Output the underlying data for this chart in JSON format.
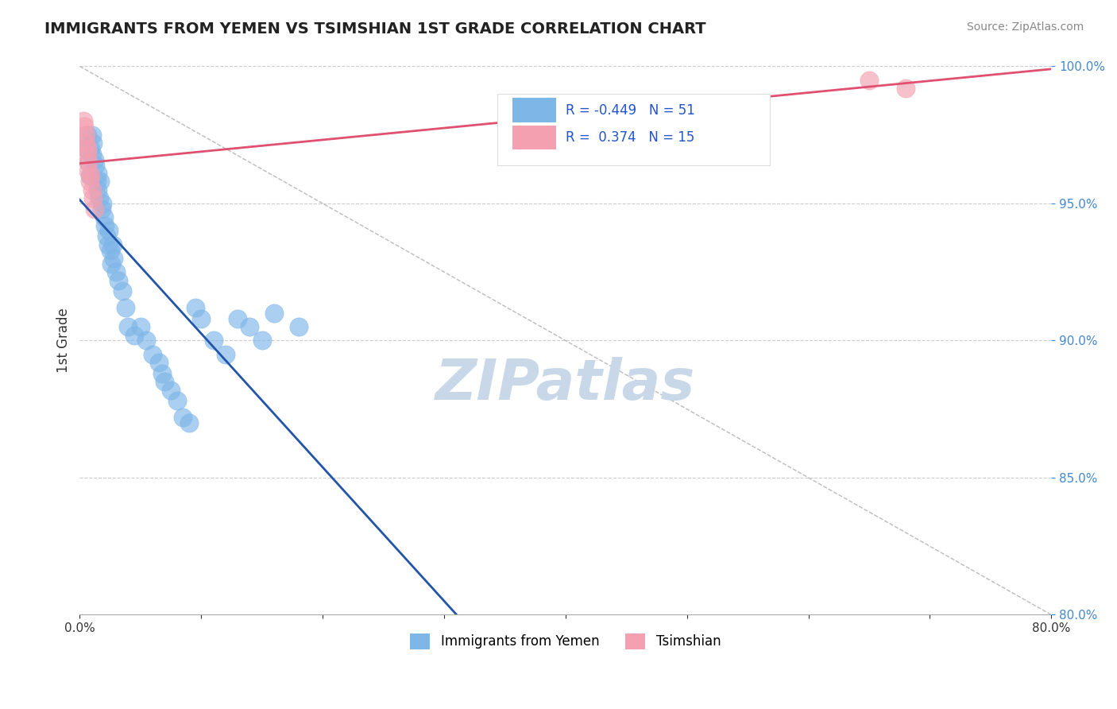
{
  "title": "IMMIGRANTS FROM YEMEN VS TSIMSHIAN 1ST GRADE CORRELATION CHART",
  "source": "Source: ZipAtlas.com",
  "ylabel": "1st Grade",
  "xlim": [
    0.0,
    0.8
  ],
  "ylim": [
    0.8,
    1.0
  ],
  "xticks": [
    0.0,
    0.1,
    0.2,
    0.3,
    0.4,
    0.5,
    0.6,
    0.7,
    0.8
  ],
  "xticklabels": [
    "0.0%",
    "",
    "",
    "",
    "",
    "",
    "",
    "",
    "80.0%"
  ],
  "yticks": [
    0.8,
    0.85,
    0.9,
    0.95,
    1.0
  ],
  "yticklabels": [
    "80.0%",
    "85.0%",
    "90.0%",
    "95.0%",
    "100.0%"
  ],
  "blue_scatter_x": [
    0.005,
    0.006,
    0.007,
    0.008,
    0.009,
    0.01,
    0.01,
    0.011,
    0.012,
    0.013,
    0.014,
    0.015,
    0.015,
    0.016,
    0.017,
    0.018,
    0.019,
    0.02,
    0.021,
    0.022,
    0.023,
    0.024,
    0.025,
    0.026,
    0.027,
    0.028,
    0.03,
    0.032,
    0.035,
    0.038,
    0.04,
    0.045,
    0.05,
    0.055,
    0.06,
    0.065,
    0.068,
    0.07,
    0.075,
    0.08,
    0.085,
    0.09,
    0.095,
    0.1,
    0.11,
    0.12,
    0.13,
    0.14,
    0.15,
    0.16,
    0.18
  ],
  "blue_scatter_y": [
    0.97,
    0.975,
    0.965,
    0.96,
    0.97,
    0.975,
    0.968,
    0.972,
    0.966,
    0.964,
    0.958,
    0.961,
    0.955,
    0.952,
    0.958,
    0.948,
    0.95,
    0.945,
    0.942,
    0.938,
    0.935,
    0.94,
    0.933,
    0.928,
    0.935,
    0.93,
    0.925,
    0.922,
    0.918,
    0.912,
    0.905,
    0.902,
    0.905,
    0.9,
    0.895,
    0.892,
    0.888,
    0.885,
    0.882,
    0.878,
    0.872,
    0.87,
    0.912,
    0.908,
    0.9,
    0.895,
    0.908,
    0.905,
    0.9,
    0.91,
    0.905
  ],
  "pink_scatter_x": [
    0.003,
    0.004,
    0.005,
    0.005,
    0.006,
    0.006,
    0.007,
    0.007,
    0.008,
    0.009,
    0.01,
    0.011,
    0.012,
    0.65,
    0.68
  ],
  "pink_scatter_y": [
    0.98,
    0.978,
    0.972,
    0.975,
    0.968,
    0.97,
    0.965,
    0.962,
    0.958,
    0.96,
    0.955,
    0.952,
    0.948,
    0.995,
    0.992
  ],
  "blue_color": "#7eb6e8",
  "pink_color": "#f4a0b0",
  "blue_trend_color": "#2255aa",
  "pink_trend_color": "#e05070",
  "diagonal_color": "#bbbbbb",
  "R_blue": -0.449,
  "N_blue": 51,
  "R_pink": 0.374,
  "N_pink": 15,
  "legend_blue_label": "Immigrants from Yemen",
  "legend_pink_label": "Tsimshian",
  "watermark": "ZIPatlas",
  "watermark_color": "#c8d8e8",
  "watermark_fontsize": 52,
  "tick_color_right": "#4488cc"
}
